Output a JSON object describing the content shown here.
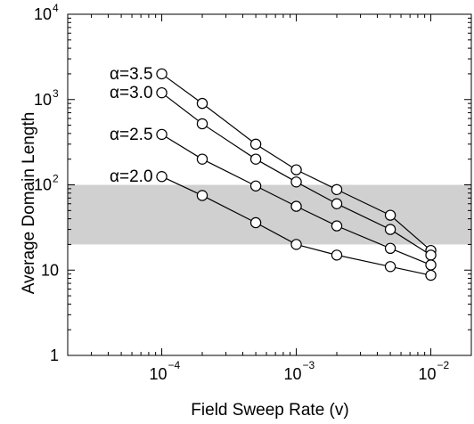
{
  "chart_data": {
    "type": "line",
    "xlabel": "Field Sweep Rate  (v)",
    "ylabel": "Average Domain Length",
    "xscale": "log",
    "yscale": "log",
    "xlim": [
      2e-05,
      0.02
    ],
    "ylim": [
      1,
      10000
    ],
    "x_ticks": [
      {
        "base": "10",
        "exp": "−4"
      },
      {
        "base": "10",
        "exp": "−3"
      },
      {
        "base": "10",
        "exp": "−2"
      }
    ],
    "y_ticks": [
      {
        "base": "1",
        "exp": ""
      },
      {
        "base": "10",
        "exp": ""
      },
      {
        "base": "10",
        "exp": "2"
      },
      {
        "base": "10",
        "exp": "3"
      },
      {
        "base": "10",
        "exp": "4"
      }
    ],
    "shaded_band": {
      "y_range": [
        20,
        100
      ],
      "color": "#d0d0d0"
    },
    "grid": false,
    "marker": "open-circle",
    "series": [
      {
        "name": "α=3.5",
        "x": [
          0.0001,
          0.0002,
          0.0005,
          0.001,
          0.002,
          0.005,
          0.01
        ],
        "y": [
          2000,
          900,
          300,
          150,
          88,
          44,
          17
        ]
      },
      {
        "name": "α=3.0",
        "x": [
          0.0001,
          0.0002,
          0.0005,
          0.001,
          0.002,
          0.005,
          0.01
        ],
        "y": [
          1200,
          520,
          200,
          108,
          60,
          30,
          15
        ]
      },
      {
        "name": "α=2.5",
        "x": [
          0.0001,
          0.0002,
          0.0005,
          0.001,
          0.002,
          0.005,
          0.01
        ],
        "y": [
          390,
          200,
          97,
          56,
          33,
          18,
          11.5
        ]
      },
      {
        "name": "α=2.0",
        "x": [
          0.0001,
          0.0002,
          0.0005,
          0.001,
          0.002,
          0.005,
          0.01
        ],
        "y": [
          125,
          75,
          36,
          20,
          15,
          11,
          8.7
        ]
      }
    ]
  }
}
